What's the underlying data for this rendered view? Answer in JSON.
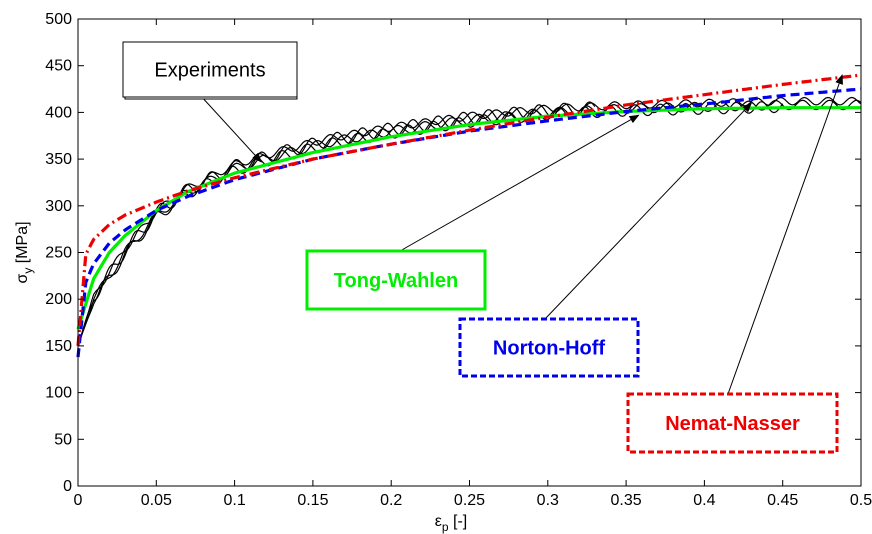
{
  "chart_data": {
    "type": "line",
    "title": "",
    "xlabel": {
      "main": "ε",
      "sub": "p",
      "suffix": " [-]"
    },
    "ylabel": {
      "main": "σ",
      "sub": "y",
      "suffix": " [MPa]"
    },
    "xlim": [
      0,
      0.5
    ],
    "ylim": [
      0,
      500
    ],
    "xticks": [
      0,
      0.05,
      0.1,
      0.15,
      0.2,
      0.25,
      0.3,
      0.35,
      0.4,
      0.45,
      0.5
    ],
    "xtick_labels": [
      "0",
      "0.05",
      "0.1",
      "0.15",
      "0.2",
      "0.25",
      "0.3",
      "0.35",
      "0.4",
      "0.45",
      "0.5"
    ],
    "yticks": [
      0,
      50,
      100,
      150,
      200,
      250,
      300,
      350,
      400,
      450,
      500
    ],
    "ytick_labels": [
      "0",
      "50",
      "100",
      "150",
      "200",
      "250",
      "300",
      "350",
      "400",
      "450",
      "500"
    ],
    "grid": false,
    "experiments": {
      "label": "Experiments",
      "color": "#000000",
      "base": {
        "x": [
          0,
          0.01,
          0.02,
          0.03,
          0.05,
          0.07,
          0.1,
          0.13,
          0.16,
          0.2,
          0.25,
          0.3,
          0.35,
          0.4,
          0.45,
          0.5
        ],
        "y": [
          150,
          200,
          225,
          250,
          290,
          315,
          340,
          355,
          368,
          380,
          392,
          400,
          404,
          406,
          408,
          408
        ]
      },
      "curves": [
        {
          "amp": 7,
          "freq": 62,
          "phase": 0.0,
          "offset": 2
        },
        {
          "amp": 6,
          "freq": 62,
          "phase": 1.2,
          "offset": -2
        },
        {
          "amp": 5,
          "freq": 58,
          "phase": 2.6,
          "offset": 0
        },
        {
          "amp": 4,
          "freq": 66,
          "phase": 4.0,
          "offset": 4
        }
      ],
      "x_end": [
        0.33,
        0.45,
        0.5,
        0.5
      ]
    },
    "series": [
      {
        "name": "Tong-Wahlen",
        "color": "#00ee00",
        "dash": "solid",
        "x": [
          0,
          0.01,
          0.02,
          0.03,
          0.05,
          0.07,
          0.1,
          0.15,
          0.2,
          0.25,
          0.3,
          0.35,
          0.4,
          0.45,
          0.5
        ],
        "y": [
          168,
          222,
          250,
          268,
          295,
          315,
          335,
          357,
          374,
          387,
          396,
          401,
          404,
          405,
          405
        ]
      },
      {
        "name": "Norton-Hoff",
        "color": "#0000ee",
        "dash": "dashed",
        "x": [
          0,
          0.005,
          0.01,
          0.02,
          0.03,
          0.05,
          0.07,
          0.1,
          0.15,
          0.2,
          0.25,
          0.3,
          0.35,
          0.4,
          0.45,
          0.5
        ],
        "y": [
          138,
          218,
          238,
          260,
          274,
          295,
          310,
          328,
          350,
          366,
          380,
          391,
          401,
          409,
          418,
          425
        ]
      },
      {
        "name": "Nemat-Nasser",
        "color": "#ee0000",
        "dash": "dashdot",
        "x": [
          0,
          0.005,
          0.01,
          0.02,
          0.03,
          0.05,
          0.07,
          0.1,
          0.15,
          0.2,
          0.25,
          0.3,
          0.35,
          0.4,
          0.45,
          0.5
        ],
        "y": [
          150,
          248,
          264,
          280,
          290,
          304,
          316,
          330,
          350,
          366,
          381,
          395,
          408,
          419,
          430,
          440
        ]
      }
    ],
    "annotations": [
      {
        "text": "Experiments",
        "target": [
          0.117,
          347
        ]
      },
      {
        "text": "Tong-Wahlen",
        "target": [
          0.358,
          397
        ]
      },
      {
        "text": "Norton-Hoff",
        "target": [
          0.43,
          410
        ]
      },
      {
        "text": "Nemat-Nasser",
        "target": [
          0.488,
          440
        ]
      }
    ]
  }
}
